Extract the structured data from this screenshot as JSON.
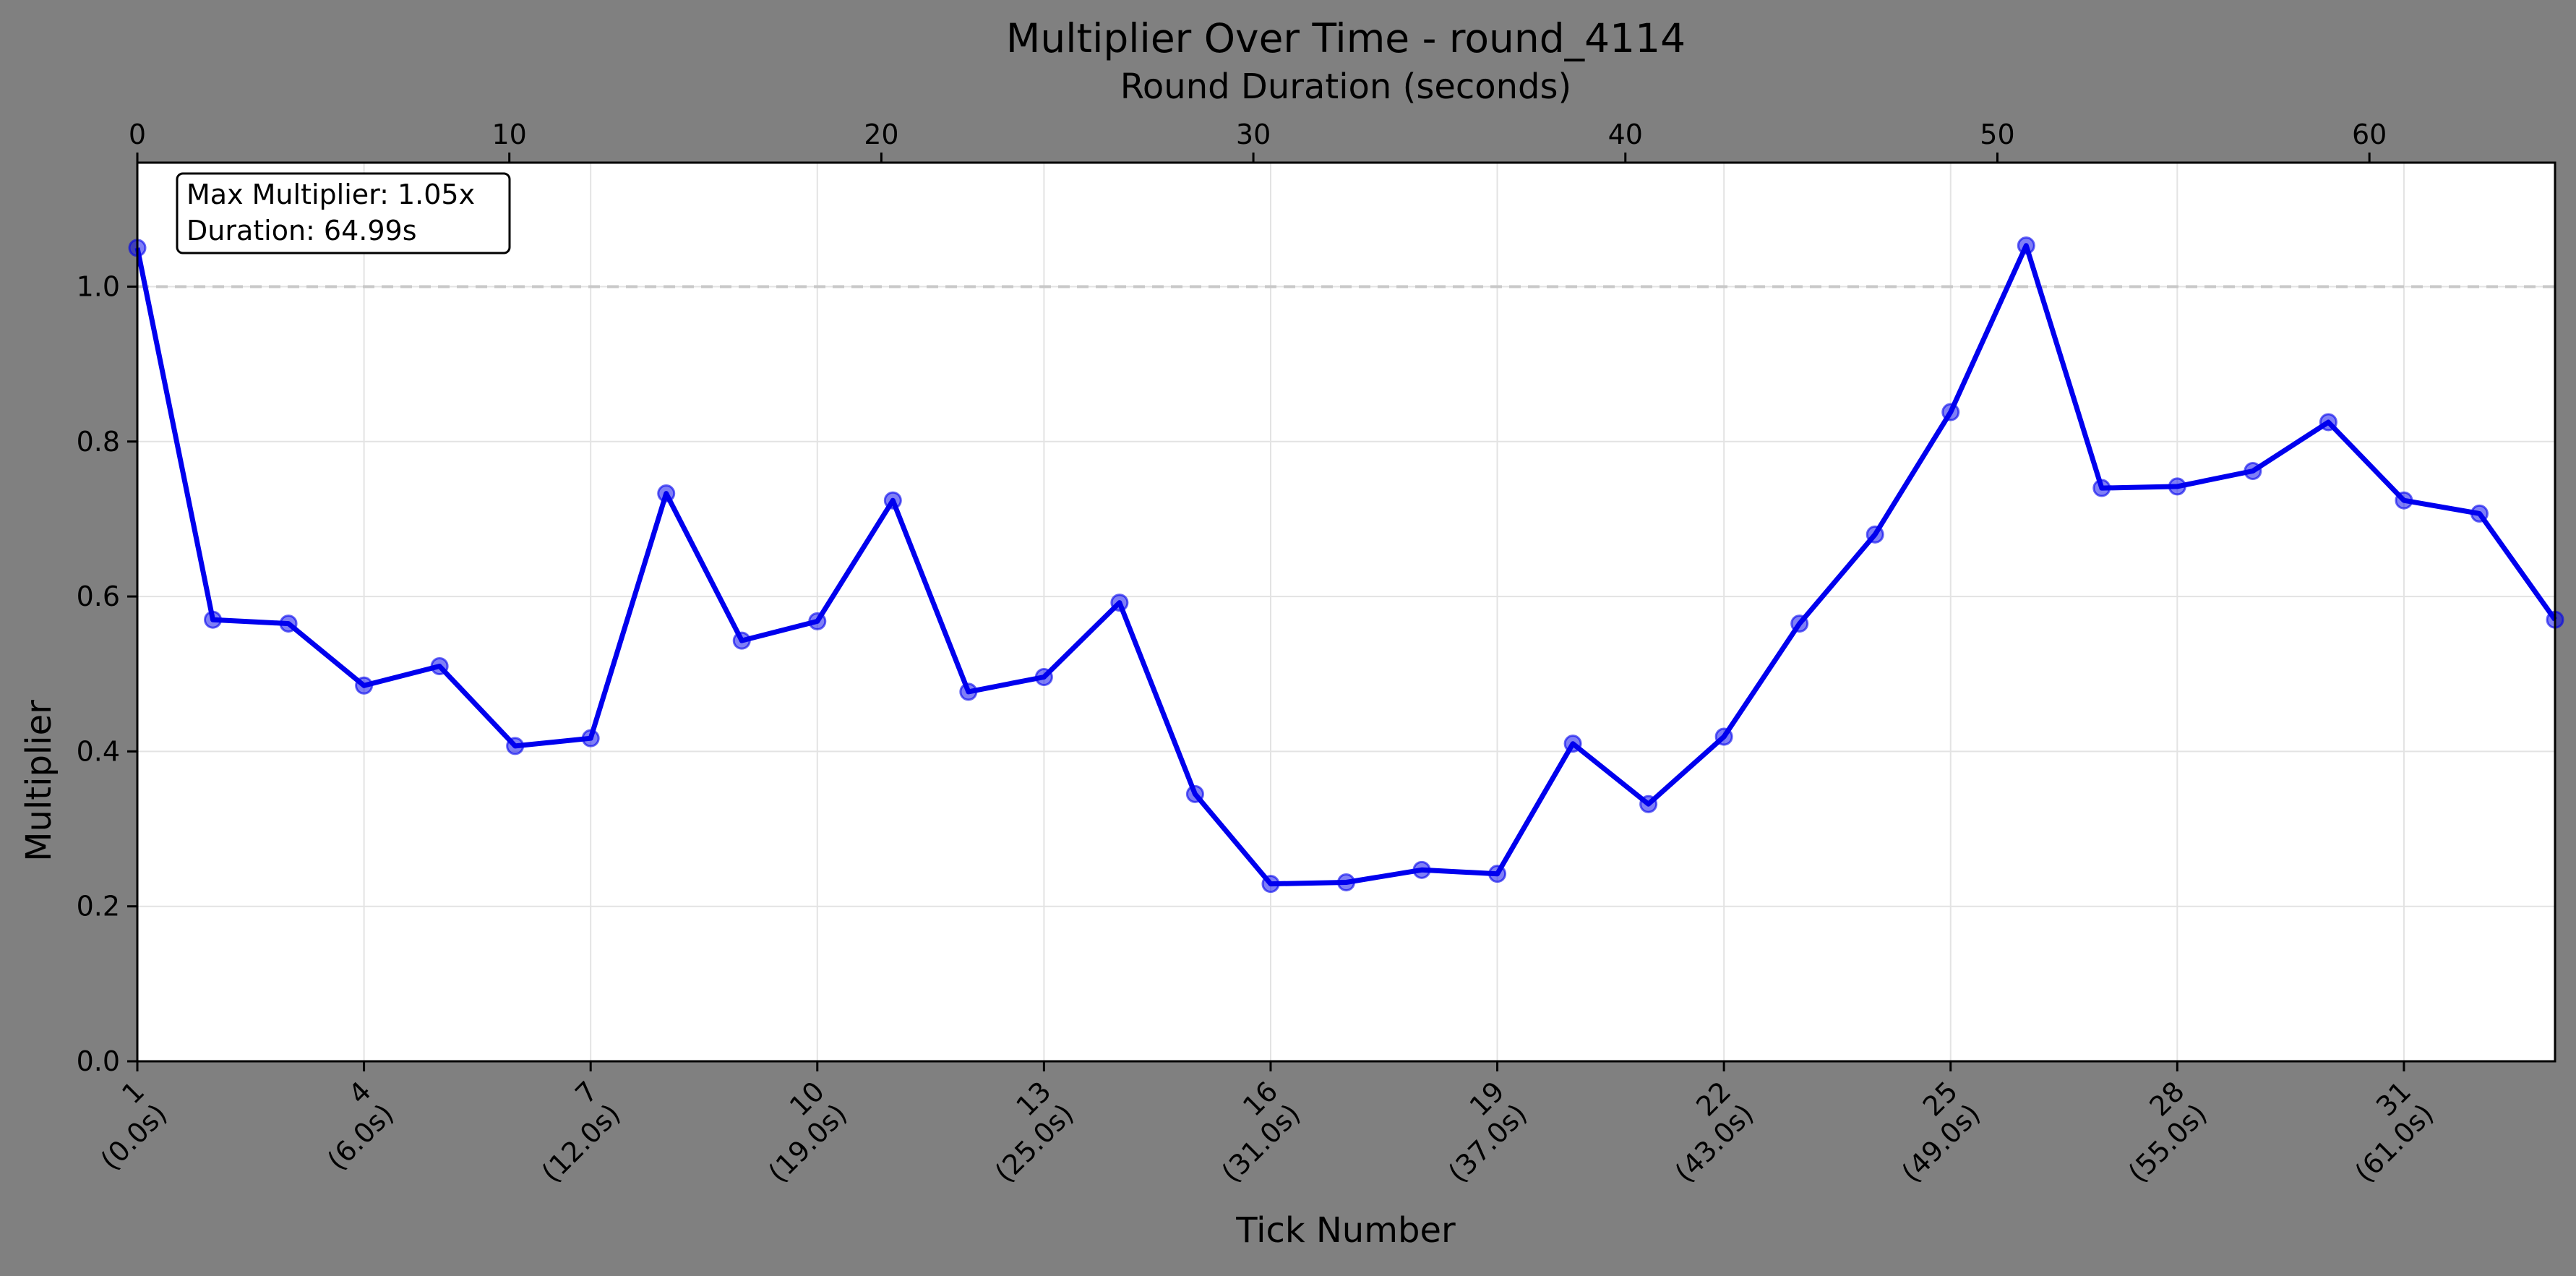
{
  "chart_data": {
    "type": "line",
    "title": "Multiplier Over Time - round_4114",
    "xlabel": "Tick Number",
    "ylabel": "Multiplier",
    "x2label": "Round Duration (seconds)",
    "xlim": [
      1,
      33
    ],
    "ylim": [
      0,
      1.16
    ],
    "x2lim": [
      0,
      64.99
    ],
    "grid": true,
    "y_ticks": [
      "0.0",
      "0.2",
      "0.4",
      "0.6",
      "0.8",
      "1.0"
    ],
    "x2_ticks": [
      "0",
      "10",
      "20",
      "30",
      "40",
      "50",
      "60"
    ],
    "x_ticks": [
      {
        "tick": "1",
        "time": "(0.0s)"
      },
      {
        "tick": "4",
        "time": "(6.0s)"
      },
      {
        "tick": "7",
        "time": "(12.0s)"
      },
      {
        "tick": "10",
        "time": "(19.0s)"
      },
      {
        "tick": "13",
        "time": "(25.0s)"
      },
      {
        "tick": "16",
        "time": "(31.0s)"
      },
      {
        "tick": "19",
        "time": "(37.0s)"
      },
      {
        "tick": "22",
        "time": "(43.0s)"
      },
      {
        "tick": "25",
        "time": "(49.0s)"
      },
      {
        "tick": "28",
        "time": "(55.0s)"
      },
      {
        "tick": "31",
        "time": "(61.0s)"
      }
    ],
    "reference_line": 1.0,
    "annotation": [
      "Max Multiplier: 1.05x",
      "Duration: 64.99s"
    ],
    "series": [
      {
        "x": [
          1,
          2,
          3,
          4,
          5,
          6,
          7,
          8,
          9,
          10,
          11,
          12,
          13,
          14,
          15,
          16,
          17,
          18,
          19,
          20,
          21,
          22,
          23,
          24,
          25,
          26,
          27,
          28,
          29,
          30,
          31,
          32,
          33
        ],
        "values": [
          1.05,
          0.57,
          0.565,
          0.485,
          0.51,
          0.407,
          0.417,
          0.733,
          0.543,
          0.568,
          0.724,
          0.477,
          0.496,
          0.592,
          0.345,
          0.229,
          0.231,
          0.247,
          0.242,
          0.41,
          0.332,
          0.419,
          0.565,
          0.68,
          0.838,
          1.053,
          0.74,
          0.742,
          0.762,
          0.825,
          0.724,
          0.707,
          0.57
        ],
        "color": "#0000ee"
      }
    ]
  }
}
